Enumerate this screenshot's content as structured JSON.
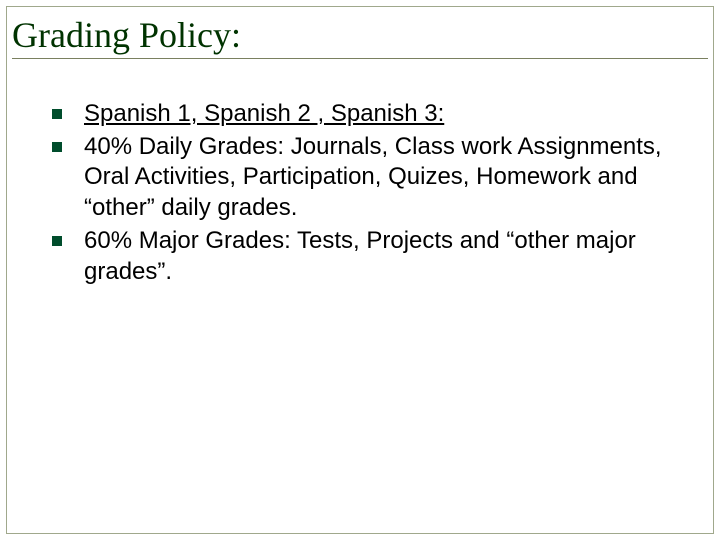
{
  "slide": {
    "title": "Grading Policy:",
    "title_color": "#003300",
    "title_fontsize": 36,
    "title_font_family": "Times New Roman",
    "title_underline_color": "#7a8060",
    "background_color": "#ffffff",
    "border_color": "#a0a88c",
    "bullets": [
      {
        "text": "Spanish 1, Spanish 2 , Spanish 3:",
        "underlined": true
      },
      {
        "text": "40% Daily Grades: Journals, Class work Assignments, Oral Activities, Participation, Quizes, Homework and “other” daily grades.",
        "underlined": false
      },
      {
        "text": "60% Major Grades: Tests, Projects and “other major grades”.",
        "underlined": false
      }
    ],
    "bullet_marker_color": "#004d2c",
    "bullet_text_color": "#000000",
    "bullet_fontsize": 24
  }
}
